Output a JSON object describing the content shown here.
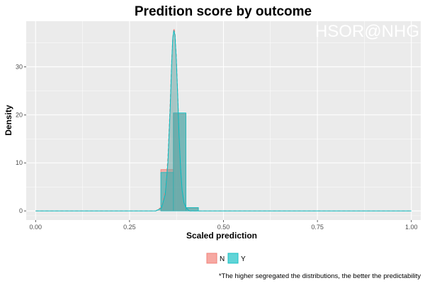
{
  "chart_data": {
    "type": "histogram+density",
    "title": "Predition score by outcome",
    "watermark": "HSOR@NHG",
    "xlabel": "Scaled prediction",
    "ylabel": "Density",
    "xlim": [
      -0.025,
      1.025
    ],
    "ylim": [
      -1.9,
      39.5
    ],
    "x_ticks": [
      0.0,
      0.25,
      0.5,
      0.75,
      1.0
    ],
    "x_tick_labels": [
      "0.00",
      "0.25",
      "0.50",
      "0.75",
      "1.00"
    ],
    "y_ticks": [
      0,
      10,
      20,
      30
    ],
    "y_tick_labels": [
      "0",
      "10",
      "20",
      "30"
    ],
    "grid": true,
    "legend": {
      "position": "bottom",
      "entries": [
        "N",
        "Y"
      ]
    },
    "caption": "*The higher segregated the distributions, the better the predictability",
    "colors": {
      "N": "#F8766D",
      "Y": "#00BFC4",
      "panel": "#EBEBEB",
      "grid": "#FFFFFF"
    },
    "bin_width": 0.0333,
    "series": [
      {
        "name": "N",
        "histogram": [
          {
            "x0": 0.3333,
            "x1": 0.3667,
            "density": 8.6
          },
          {
            "x0": 0.3667,
            "x1": 0.4,
            "density": 20.2
          },
          {
            "x0": 0.4,
            "x1": 0.4333,
            "density": 0.6
          }
        ],
        "density_x": [
          0.0,
          0.32,
          0.335,
          0.345,
          0.352,
          0.358,
          0.362,
          0.365,
          0.368,
          0.371,
          0.374,
          0.378,
          0.382,
          0.386,
          0.39,
          0.395,
          0.4,
          0.405,
          0.41,
          1.0
        ],
        "density_y": [
          0.0,
          0.0,
          0.8,
          4.0,
          11.0,
          22.0,
          31.0,
          36.0,
          38.0,
          37.0,
          33.0,
          25.0,
          16.0,
          9.0,
          4.5,
          1.8,
          0.7,
          0.3,
          0.0,
          0.0
        ]
      },
      {
        "name": "Y",
        "histogram": [
          {
            "x0": 0.3333,
            "x1": 0.3667,
            "density": 8.0
          },
          {
            "x0": 0.3667,
            "x1": 0.4,
            "density": 20.4
          },
          {
            "x0": 0.4,
            "x1": 0.4333,
            "density": 0.7
          }
        ],
        "density_x": [
          0.0,
          0.32,
          0.335,
          0.345,
          0.352,
          0.358,
          0.362,
          0.365,
          0.368,
          0.371,
          0.374,
          0.378,
          0.382,
          0.386,
          0.39,
          0.395,
          0.4,
          0.405,
          0.41,
          1.0
        ],
        "density_y": [
          0.0,
          0.0,
          0.6,
          3.4,
          10.0,
          21.0,
          30.5,
          36.0,
          37.6,
          36.5,
          32.5,
          24.5,
          15.5,
          8.8,
          4.3,
          1.7,
          0.7,
          0.3,
          0.0,
          0.0
        ]
      }
    ]
  }
}
